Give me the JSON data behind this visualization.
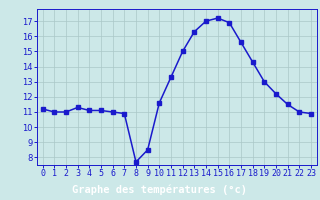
{
  "hours": [
    0,
    1,
    2,
    3,
    4,
    5,
    6,
    7,
    8,
    9,
    10,
    11,
    12,
    13,
    14,
    15,
    16,
    17,
    18,
    19,
    20,
    21,
    22,
    23
  ],
  "temperatures": [
    11.2,
    11.0,
    11.0,
    11.3,
    11.1,
    11.1,
    11.0,
    10.9,
    7.7,
    8.5,
    11.6,
    13.3,
    15.0,
    16.3,
    17.0,
    17.2,
    16.9,
    15.6,
    14.3,
    13.0,
    12.2,
    11.5,
    11.0,
    10.9
  ],
  "line_color": "#1a1acc",
  "marker": "s",
  "markersize": 2.5,
  "linewidth": 1.1,
  "bg_color": "#cce8e8",
  "plot_bg_color": "#cce8e8",
  "grid_color": "#aac8c8",
  "xlabel": "Graphe des températures (°c)",
  "xlabel_color": "#ffffff",
  "xlabel_bg": "#1a1acc",
  "ylim_min": 7.5,
  "ylim_max": 17.8,
  "yticks": [
    8,
    9,
    10,
    11,
    12,
    13,
    14,
    15,
    16,
    17
  ],
  "tick_color": "#1a1acc",
  "tick_fontsize": 6.0,
  "xlabel_fontsize": 7.5,
  "spine_color": "#1a1acc"
}
